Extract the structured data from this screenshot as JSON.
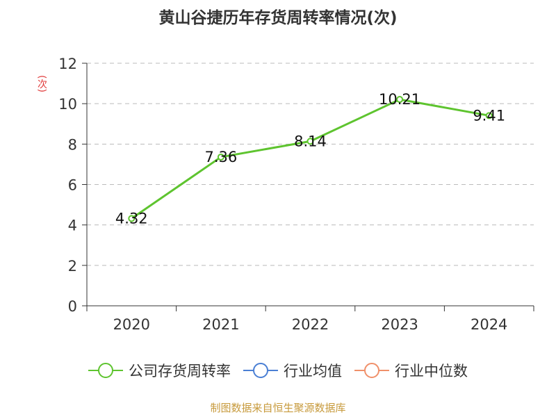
{
  "chart_data": {
    "type": "line",
    "title": "黄山谷捷历年存货周转率情况(次)",
    "ylabel": "(次)",
    "categories": [
      "2020",
      "2021",
      "2022",
      "2023",
      "2024"
    ],
    "ylim": [
      0,
      12
    ],
    "yticks": [
      "0",
      "2",
      "4",
      "6",
      "8",
      "10",
      "12"
    ],
    "grid": true,
    "series": [
      {
        "name": "公司存货周转率",
        "values": [
          4.32,
          7.36,
          8.14,
          10.21,
          9.41
        ],
        "labels": [
          "4.32",
          "7.36",
          "8.14",
          "10.21",
          "9.41"
        ],
        "color": "#5ec42f"
      }
    ],
    "legend": [
      {
        "name": "公司存货周转率",
        "color": "#5ec42f"
      },
      {
        "name": "行业均值",
        "color": "#4a7fd4"
      },
      {
        "name": "行业中位数",
        "color": "#f0906a"
      }
    ],
    "legend_position": "bottom"
  },
  "source": "制图数据来自恒生聚源数据库"
}
